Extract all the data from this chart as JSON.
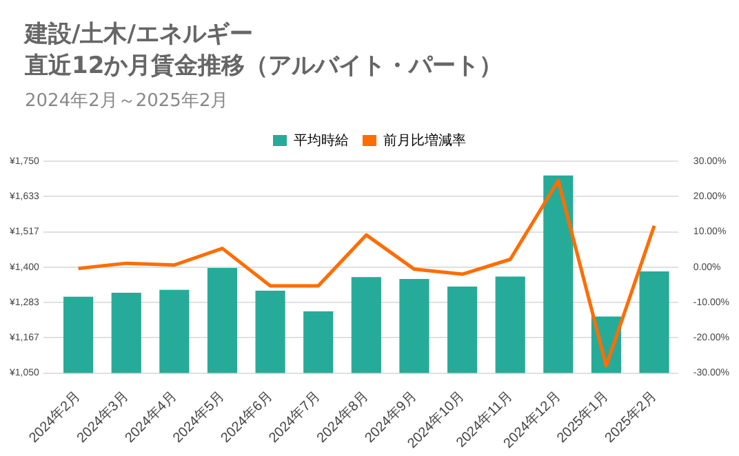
{
  "chart_data": {
    "type": "bar",
    "title": "建設/土木/エネルギー",
    "subtitle": "直近12か月賃金推移（アルバイト・パート）",
    "annotations": [
      "2024年2月～2025年2月"
    ],
    "categories": [
      "2024年2月",
      "2024年3月",
      "2024年4月",
      "2024年5月",
      "2024年6月",
      "2024年7月",
      "2024年8月",
      "2024年9月",
      "2024年10月",
      "2024年11月",
      "2024年12月",
      "2025年1月",
      "2025年2月"
    ],
    "series": [
      {
        "name": "平均時給",
        "color": "#26ab99",
        "values": [
          1302,
          1315,
          1325,
          1397,
          1322,
          1254,
          1367,
          1361,
          1336,
          1369,
          1703,
          1237,
          1386
        ]
      },
      {
        "name": "前月比増減率",
        "type": "line",
        "axis": "y2",
        "color": "#ff6d00",
        "values": [
          -0.4,
          1.1,
          0.6,
          5.3,
          -5.3,
          -5.3,
          9.1,
          -0.6,
          -2.0,
          2.2,
          24.5,
          -28.0,
          11.7
        ]
      }
    ],
    "ylim": [
      1050,
      1750
    ],
    "yticks": [
      {
        "value": 1050,
        "label": "¥1,050"
      },
      {
        "value": 1166.67,
        "label": "¥1,167"
      },
      {
        "value": 1283.33,
        "label": "¥1,283"
      },
      {
        "value": 1400,
        "label": "¥1,400"
      },
      {
        "value": 1516.67,
        "label": "¥1,517"
      },
      {
        "value": 1633.33,
        "label": "¥1,633"
      },
      {
        "value": 1750,
        "label": "¥1,750"
      }
    ],
    "y2lim": [
      -30,
      30
    ],
    "y2ticks": [
      {
        "value": -30,
        "label": "-30.00%"
      },
      {
        "value": -20,
        "label": "-20.00%"
      },
      {
        "value": -10,
        "label": "-10.00%"
      },
      {
        "value": 0,
        "label": "0.00%"
      },
      {
        "value": 10,
        "label": "10.00%"
      },
      {
        "value": 20,
        "label": "20.00%"
      },
      {
        "value": 30,
        "label": "30.00%"
      }
    ],
    "grid": "y",
    "legend": "top",
    "marker": "none"
  }
}
